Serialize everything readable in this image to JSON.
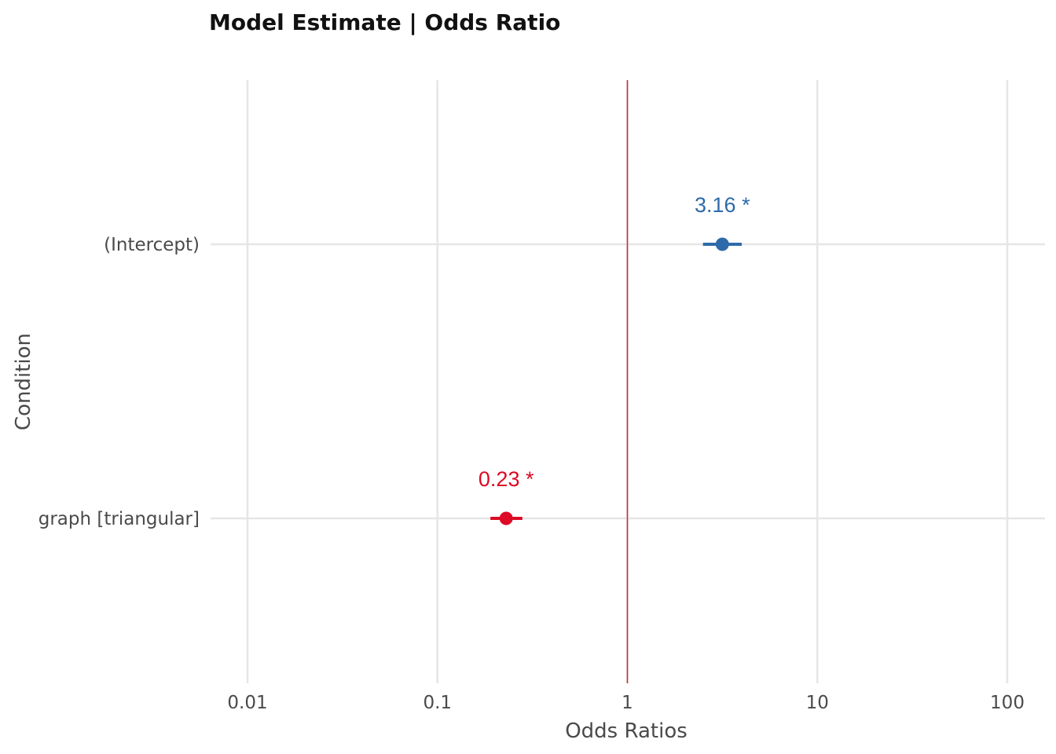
{
  "chart_data": {
    "type": "scatter",
    "title": "Model Estimate | Odds Ratio",
    "xlabel": "Odds Ratios",
    "ylabel": "Condition",
    "x_scale": "log10",
    "xlim": [
      0.01,
      100
    ],
    "x_ticks": [
      {
        "value": 0.01,
        "label": "0.01"
      },
      {
        "value": 0.1,
        "label": "0.1"
      },
      {
        "value": 1,
        "label": "1"
      },
      {
        "value": 10,
        "label": "10"
      },
      {
        "value": 100,
        "label": "100"
      }
    ],
    "reference_line": {
      "x": 1,
      "color": "#d32f3c"
    },
    "grid": true,
    "points": [
      {
        "term": "(Intercept)",
        "estimate": 3.16,
        "ci_low": 2.5,
        "ci_high": 4.0,
        "label": "3.16 *",
        "color": "#2e6aa9"
      },
      {
        "term": "graph [triangular]",
        "estimate": 0.23,
        "ci_low": 0.19,
        "ci_high": 0.28,
        "label": "0.23 *",
        "color": "#dc0a24"
      }
    ]
  }
}
